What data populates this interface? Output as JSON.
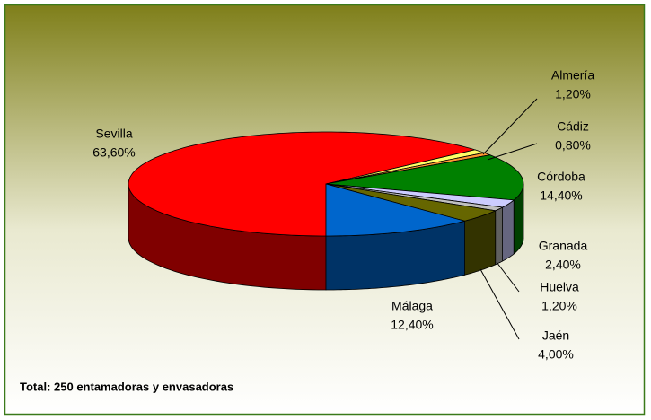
{
  "chart_data": {
    "type": "pie",
    "categories": [
      "Sevilla",
      "Almería",
      "Cádiz",
      "Córdoba",
      "Granada",
      "Huelva",
      "Jaén",
      "Málaga"
    ],
    "values": [
      63.6,
      1.2,
      0.8,
      14.4,
      2.4,
      1.2,
      4.0,
      12.4
    ],
    "value_labels": [
      "63,60%",
      "1,20%",
      "0,80%",
      "14,40%",
      "2,40%",
      "1,20%",
      "4,00%",
      "12,40%"
    ],
    "colors": [
      "#ff0000",
      "#ffff66",
      "#ff9933",
      "#008000",
      "#ccccff",
      "#c0c0c0",
      "#666600",
      "#0066cc"
    ],
    "annotation": "Total: 250 entamadoras y envasadoras"
  }
}
